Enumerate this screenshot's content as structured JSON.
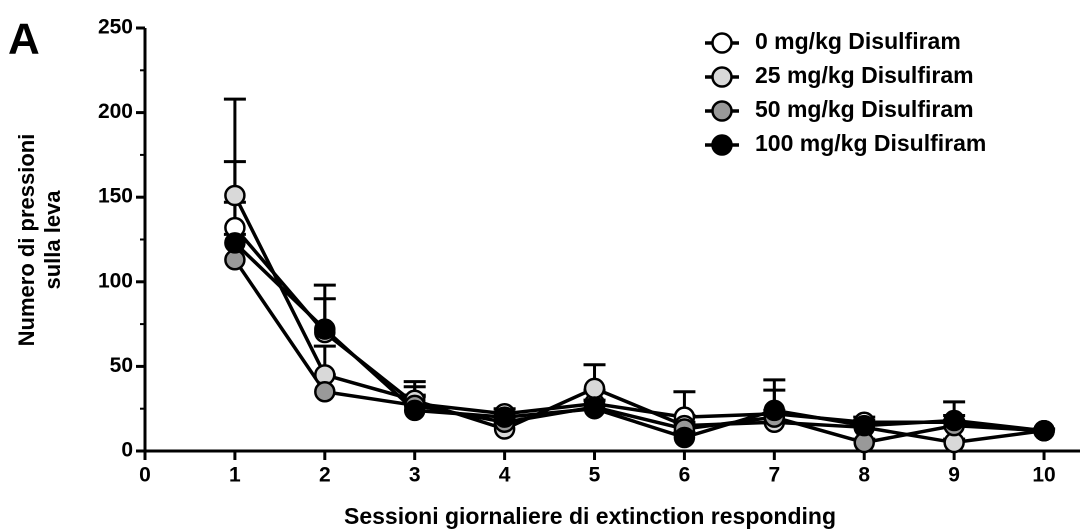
{
  "chart_data": {
    "type": "line",
    "panel_label": "A",
    "xlabel": "Sessioni giornaliere di extinction responding",
    "ylabel": [
      "Numero di pressioni",
      "sulla leva"
    ],
    "x": [
      1,
      2,
      3,
      4,
      5,
      6,
      7,
      8,
      9,
      10
    ],
    "series": [
      {
        "name": "0 mg/kg Disulfiram",
        "color": "#ffffff",
        "values": [
          132,
          70,
          28,
          22,
          28,
          20,
          22,
          17,
          17,
          12
        ],
        "errors": [
          76,
          20,
          10,
          3,
          8,
          15,
          14,
          3,
          4,
          1
        ]
      },
      {
        "name": "25 mg/kg Disulfiram",
        "color": "#d9d9d9",
        "values": [
          151,
          45,
          30,
          13,
          37,
          15,
          17,
          14,
          5,
          12
        ],
        "errors": [
          20,
          17,
          11,
          3,
          14,
          6,
          5,
          3,
          2,
          1
        ]
      },
      {
        "name": "50 mg/kg Disulfiram",
        "color": "#999999",
        "values": [
          113,
          35,
          27,
          17,
          26,
          13,
          20,
          5,
          15,
          12
        ],
        "errors": [
          15,
          10,
          6,
          3,
          4,
          4,
          4,
          2,
          3,
          1
        ]
      },
      {
        "name": "100 mg/kg Disulfiram",
        "color": "#000000",
        "values": [
          123,
          72,
          24,
          20,
          25,
          8,
          24,
          15,
          18,
          12
        ],
        "errors": [
          24,
          26,
          8,
          3,
          5,
          3,
          18,
          3,
          11,
          1
        ]
      }
    ],
    "xlim": [
      0,
      10.4
    ],
    "xticks": [
      0,
      1,
      2,
      3,
      4,
      5,
      6,
      7,
      8,
      9,
      10
    ],
    "ylim": [
      0,
      250
    ],
    "yticks": [
      0,
      50,
      100,
      150,
      200,
      250
    ],
    "legend": "upper right"
  }
}
